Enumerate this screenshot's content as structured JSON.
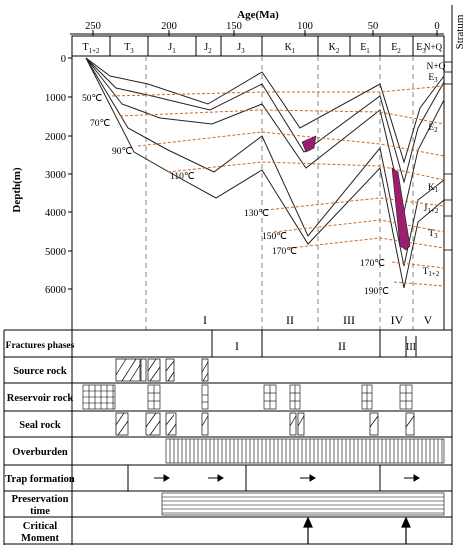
{
  "axis": {
    "top_title": "Age(Ma)",
    "left_title": "Depth(m)",
    "right_title": "Stratum",
    "age_ticks": [
      "250",
      "200",
      "150",
      "100",
      "50",
      "0"
    ],
    "depth_ticks": [
      "0",
      "1000",
      "2000",
      "3000",
      "4000",
      "5000",
      "6000"
    ]
  },
  "periods": [
    {
      "label": "T",
      "sub": "1+2"
    },
    {
      "label": "T",
      "sub": "3"
    },
    {
      "label": "J",
      "sub": "1"
    },
    {
      "label": "J",
      "sub": "2"
    },
    {
      "label": "J",
      "sub": "3"
    },
    {
      "label": "K",
      "sub": "1"
    },
    {
      "label": "K",
      "sub": "2"
    },
    {
      "label": "E",
      "sub": "1"
    },
    {
      "label": "E",
      "sub": "2"
    },
    {
      "label": "E",
      "sub": "3"
    },
    {
      "label": "N+Q",
      "sub": ""
    }
  ],
  "strata": [
    {
      "label": "N+Q",
      "sub": ""
    },
    {
      "label": "E",
      "sub": "3"
    },
    {
      "label": "E",
      "sub": "2"
    },
    {
      "label": "K",
      "sub": "1"
    },
    {
      "label": "J",
      "sub": "1+2"
    },
    {
      "label": "T",
      "sub": "3"
    },
    {
      "label": "T",
      "sub": "1+2"
    }
  ],
  "isotherms": [
    {
      "label": "50℃"
    },
    {
      "label": "70℃"
    },
    {
      "label": "90℃"
    },
    {
      "label": "110℃"
    },
    {
      "label": "130℃"
    },
    {
      "label": "150℃"
    },
    {
      "label": "170℃"
    },
    {
      "label": "170℃"
    },
    {
      "label": "190℃"
    }
  ],
  "tectonic_stages": [
    "I",
    "II",
    "III",
    "IV",
    "V"
  ],
  "fracture_phases": [
    "I",
    "II",
    "III"
  ],
  "rows": {
    "fractures": "Fractures phases",
    "source": "Source rock",
    "reservoir": "Reservoir rock",
    "seal": "Seal rock",
    "overburden": "Overburden",
    "trap": "Trap formation",
    "preservation_1": "Preservation",
    "preservation_2": "time",
    "critical_1": "Critical",
    "critical_2": "Moment"
  },
  "colors": {
    "isotherm": "#d2691e",
    "hydrocarbon": "#9b1f6e",
    "line": "#000000",
    "dash": "#555555"
  }
}
